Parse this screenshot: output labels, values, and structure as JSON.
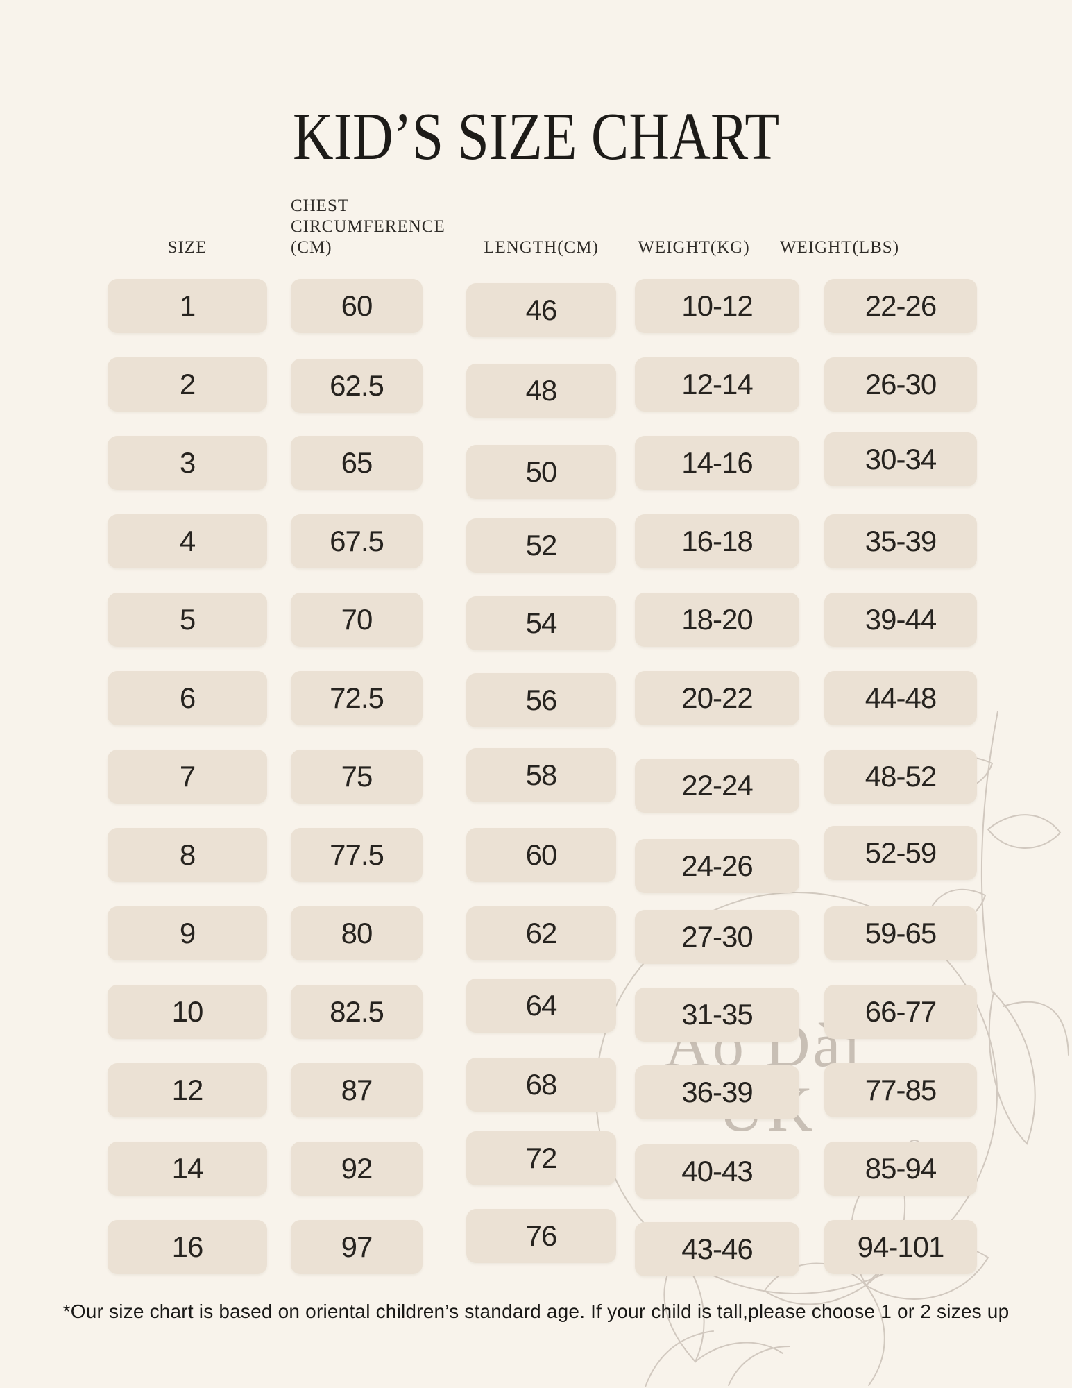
{
  "page": {
    "title": "KID’S SIZE CHART",
    "footnote": "*Our size chart is based on oriental children’s standard age. If your child is tall,please choose 1 or 2 sizes up"
  },
  "watermark": {
    "line1": "Áo Dài",
    "line2": "UK"
  },
  "colors": {
    "background": "#f8f3eb",
    "cell": "#ebe1d4",
    "heading": "#1d1b18",
    "number": "#26231f",
    "watermark": "#a2968a"
  },
  "chart_data": {
    "type": "table",
    "title": "KID’S SIZE CHART",
    "columns": [
      "SIZE",
      "CHEST CIRCUMFERENCE (CM)",
      "LENGTH(CM)",
      "WEIGHT(KG)",
      "WEIGHT(LBS)"
    ],
    "column_labels_display": [
      {
        "label": "SIZE"
      },
      {
        "label": "CHEST\nCIRCUMFERENCE\n(CM)"
      },
      {
        "label": "LENGTH(CM)"
      },
      {
        "label": "WEIGHT(KG)"
      },
      {
        "label": "WEIGHT(LBS)"
      }
    ],
    "rows": [
      [
        "1",
        "60",
        "46",
        "10-12",
        "22-26"
      ],
      [
        "2",
        "62.5",
        "48",
        "12-14",
        "26-30"
      ],
      [
        "3",
        "65",
        "50",
        "14-16",
        "30-34"
      ],
      [
        "4",
        "67.5",
        "52",
        "16-18",
        "35-39"
      ],
      [
        "5",
        "70",
        "54",
        "18-20",
        "39-44"
      ],
      [
        "6",
        "72.5",
        "56",
        "20-22",
        "44-48"
      ],
      [
        "7",
        "75",
        "58",
        "22-24",
        "48-52"
      ],
      [
        "8",
        "77.5",
        "60",
        "24-26",
        "52-59"
      ],
      [
        "9",
        "80",
        "62",
        "27-30",
        "59-65"
      ],
      [
        "10",
        "82.5",
        "64",
        "31-35",
        "66-77"
      ],
      [
        "12",
        "87",
        "68",
        "36-39",
        "77-85"
      ],
      [
        "14",
        "92",
        "72",
        "40-43",
        "85-94"
      ],
      [
        "16",
        "97",
        "76",
        "43-46",
        "94-101"
      ]
    ],
    "footnote": "*Our size chart is based on oriental children’s standard age. If your child is tall,please choose 1 or 2 sizes up"
  }
}
